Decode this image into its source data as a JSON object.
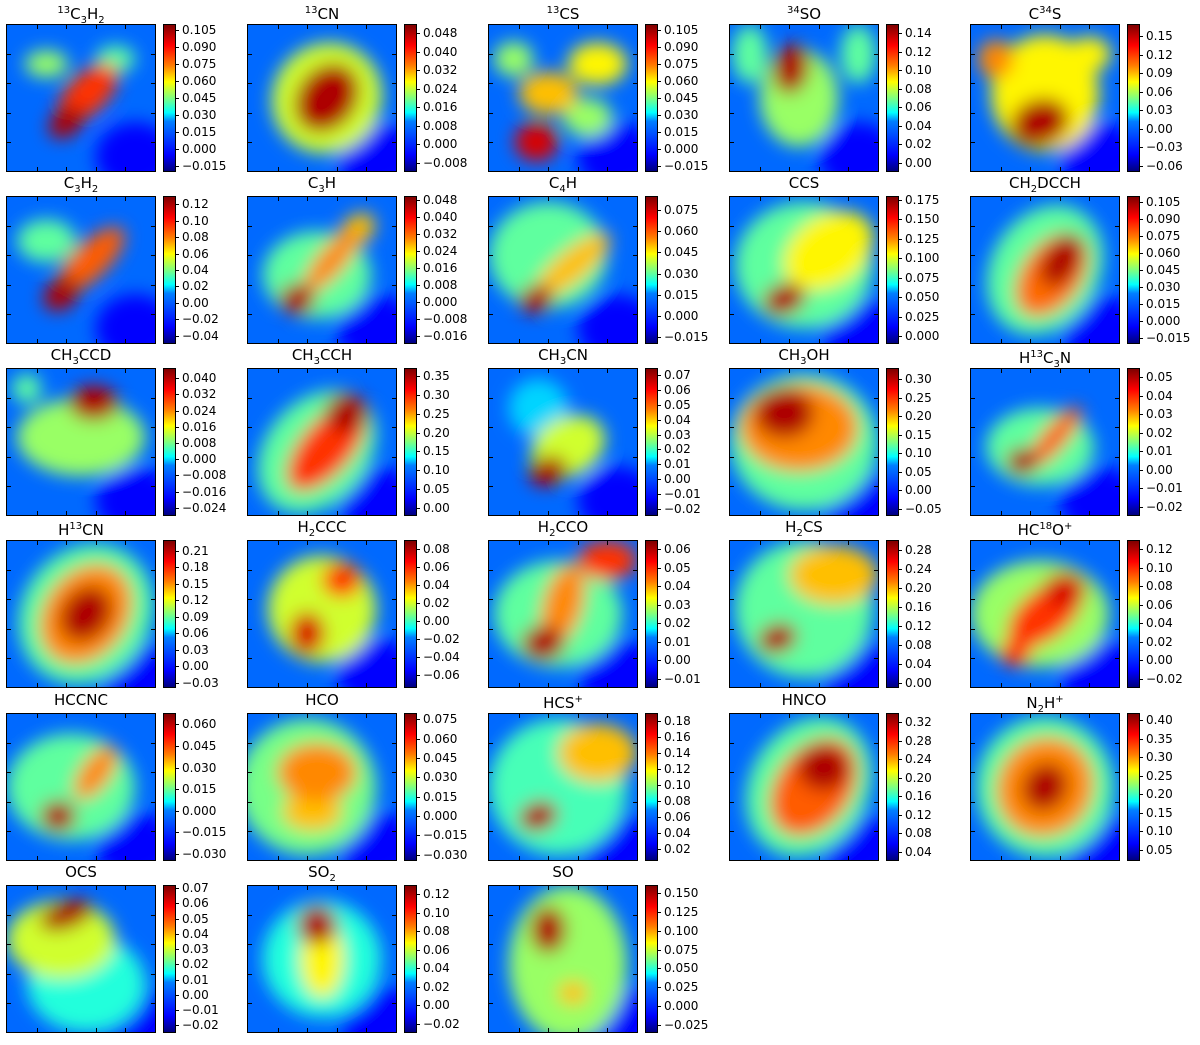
{
  "figure": {
    "panels": [
      {
        "title": "13C3H2",
        "ticks": [
          "0.105",
          "0.090",
          "0.075",
          "0.060",
          "0.045",
          "0.030",
          "0.015",
          "0.000",
          "−0.015"
        ]
      },
      {
        "title": "13CN",
        "ticks": [
          "0.048",
          "0.040",
          "0.032",
          "0.024",
          "0.016",
          "0.008",
          "0.000",
          "−0.008"
        ]
      },
      {
        "title": "13CS",
        "ticks": [
          "0.105",
          "0.090",
          "0.075",
          "0.060",
          "0.045",
          "0.030",
          "0.015",
          "0.000",
          "−0.015"
        ]
      },
      {
        "title": "34SO",
        "ticks": [
          "0.14",
          "0.12",
          "0.10",
          "0.08",
          "0.06",
          "0.04",
          "0.02",
          "0.00"
        ]
      },
      {
        "title": "C34S",
        "ticks": [
          "0.15",
          "0.12",
          "0.09",
          "0.06",
          "0.03",
          "0.00",
          "−0.03",
          "−0.06"
        ]
      },
      {
        "title": "C3H2",
        "ticks": [
          "0.12",
          "0.10",
          "0.08",
          "0.06",
          "0.04",
          "0.02",
          "0.00",
          "−0.02",
          "−0.04"
        ]
      },
      {
        "title": "C3H",
        "ticks": [
          "0.048",
          "0.040",
          "0.032",
          "0.024",
          "0.016",
          "0.008",
          "0.000",
          "−0.008",
          "−0.016"
        ]
      },
      {
        "title": "C4H",
        "ticks": [
          "0.075",
          "0.060",
          "0.045",
          "0.030",
          "0.015",
          "0.000",
          "−0.015"
        ]
      },
      {
        "title": "CCS",
        "ticks": [
          "0.175",
          "0.150",
          "0.125",
          "0.100",
          "0.075",
          "0.050",
          "0.025",
          "0.000"
        ]
      },
      {
        "title": "CH2DCCH",
        "ticks": [
          "0.105",
          "0.090",
          "0.075",
          "0.060",
          "0.045",
          "0.030",
          "0.015",
          "0.000",
          "−0.015"
        ]
      },
      {
        "title": "CH3CCD",
        "ticks": [
          "0.040",
          "0.032",
          "0.024",
          "0.016",
          "0.008",
          "0.000",
          "−0.008",
          "−0.016",
          "−0.024"
        ]
      },
      {
        "title": "CH3CCH",
        "ticks": [
          "0.35",
          "0.30",
          "0.25",
          "0.20",
          "0.15",
          "0.10",
          "0.05",
          "0.00"
        ]
      },
      {
        "title": "CH3CN",
        "ticks": [
          "0.07",
          "0.06",
          "0.05",
          "0.04",
          "0.03",
          "0.02",
          "0.01",
          "0.00",
          "−0.01",
          "−0.02"
        ]
      },
      {
        "title": "CH3OH",
        "ticks": [
          "0.30",
          "0.25",
          "0.20",
          "0.15",
          "0.10",
          "0.05",
          "0.00",
          "−0.05"
        ]
      },
      {
        "title": "H13C3N",
        "ticks": [
          "0.05",
          "0.04",
          "0.03",
          "0.02",
          "0.01",
          "0.00",
          "−0.01",
          "−0.02"
        ]
      },
      {
        "title": "H13CN",
        "ticks": [
          "0.21",
          "0.18",
          "0.15",
          "0.12",
          "0.09",
          "0.06",
          "0.03",
          "0.00",
          "−0.03"
        ]
      },
      {
        "title": "H2CCC",
        "ticks": [
          "0.08",
          "0.06",
          "0.04",
          "0.02",
          "0.00",
          "−0.02",
          "−0.04",
          "−0.06"
        ]
      },
      {
        "title": "H2CCO",
        "ticks": [
          "0.06",
          "0.05",
          "0.04",
          "0.03",
          "0.02",
          "0.01",
          "0.00",
          "−0.01"
        ]
      },
      {
        "title": "H2CS",
        "ticks": [
          "0.28",
          "0.24",
          "0.20",
          "0.16",
          "0.12",
          "0.08",
          "0.04",
          "0.00"
        ]
      },
      {
        "title": "HC18O+",
        "ticks": [
          "0.12",
          "0.10",
          "0.08",
          "0.06",
          "0.04",
          "0.02",
          "0.00",
          "−0.02"
        ]
      },
      {
        "title": "HCCNC",
        "ticks": [
          "0.060",
          "0.045",
          "0.030",
          "0.015",
          "0.000",
          "−0.015",
          "−0.030"
        ]
      },
      {
        "title": "HCO",
        "ticks": [
          "0.075",
          "0.060",
          "0.045",
          "0.030",
          "0.015",
          "0.000",
          "−0.015",
          "−0.030"
        ]
      },
      {
        "title": "HCS+",
        "ticks": [
          "0.18",
          "0.16",
          "0.14",
          "0.12",
          "0.10",
          "0.08",
          "0.06",
          "0.04",
          "0.02"
        ]
      },
      {
        "title": "HNCO",
        "ticks": [
          "0.32",
          "0.28",
          "0.24",
          "0.20",
          "0.16",
          "0.12",
          "0.08",
          "0.04"
        ]
      },
      {
        "title": "N2H+",
        "ticks": [
          "0.40",
          "0.35",
          "0.30",
          "0.25",
          "0.20",
          "0.15",
          "0.10",
          "0.05"
        ]
      },
      {
        "title": "OCS",
        "ticks": [
          "0.07",
          "0.06",
          "0.05",
          "0.04",
          "0.03",
          "0.02",
          "0.01",
          "0.00",
          "−0.01",
          "−0.02"
        ]
      },
      {
        "title": "SO2",
        "ticks": [
          "0.12",
          "0.10",
          "0.08",
          "0.06",
          "0.04",
          "0.02",
          "0.00",
          "−0.02"
        ]
      },
      {
        "title": "SO",
        "ticks": [
          "0.150",
          "0.125",
          "0.100",
          "0.075",
          "0.050",
          "0.025",
          "0.000",
          "−0.025"
        ]
      }
    ]
  },
  "chart_data": {
    "type": "heatmap",
    "colormap": "jet",
    "layout": "grid of 28 intensity maps, each with its own colorbar",
    "maps": [
      {
        "title": "13C3H2",
        "colorbar_range": [
          -0.02,
          0.11
        ],
        "morphology": "diagonal elongated emission, peak lower-left"
      },
      {
        "title": "13CN",
        "colorbar_range": [
          -0.012,
          0.052
        ],
        "morphology": "central elongated peak"
      },
      {
        "title": "13CS",
        "colorbar_range": [
          -0.02,
          0.11
        ],
        "morphology": "clumpy, peaks lower-center"
      },
      {
        "title": "34SO",
        "colorbar_range": [
          -0.01,
          0.15
        ],
        "morphology": "compact peak upper-center"
      },
      {
        "title": "C34S",
        "colorbar_range": [
          -0.07,
          0.17
        ],
        "morphology": "extended, peak lower-center"
      },
      {
        "title": "C3H2",
        "colorbar_range": [
          -0.05,
          0.13
        ],
        "morphology": "diagonal ridge, peak lower-left"
      },
      {
        "title": "C3H",
        "colorbar_range": [
          -0.02,
          0.05
        ],
        "morphology": "diagonal ridge, peak lower-left"
      },
      {
        "title": "C4H",
        "colorbar_range": [
          -0.02,
          0.085
        ],
        "morphology": "diagonal ridge, peak lower-left"
      },
      {
        "title": "CCS",
        "colorbar_range": [
          -0.01,
          0.18
        ],
        "morphology": "peak lower-left, extended to upper-right"
      },
      {
        "title": "CH2DCCH",
        "colorbar_range": [
          -0.02,
          0.11
        ],
        "morphology": "diagonal elongated, peak upper-center"
      },
      {
        "title": "CH3CCD",
        "colorbar_range": [
          -0.028,
          0.045
        ],
        "morphology": "compact peak upper-center"
      },
      {
        "title": "CH3CCH",
        "colorbar_range": [
          -0.02,
          0.37
        ],
        "morphology": "diagonal elongated, peak upper-right"
      },
      {
        "title": "CH3CN",
        "colorbar_range": [
          -0.025,
          0.075
        ],
        "morphology": "compact peak lower-center"
      },
      {
        "title": "CH3OH",
        "colorbar_range": [
          -0.07,
          0.33
        ],
        "morphology": "broad peak upper-left"
      },
      {
        "title": "H13C3N",
        "colorbar_range": [
          -0.025,
          0.055
        ],
        "morphology": "diagonal ridge, peak lower-left"
      },
      {
        "title": "H13CN",
        "colorbar_range": [
          -0.04,
          0.23
        ],
        "morphology": "central elongated peak"
      },
      {
        "title": "H2CCC",
        "colorbar_range": [
          -0.075,
          0.09
        ],
        "morphology": "clumpy, peak lower-center"
      },
      {
        "title": "H2CCO",
        "colorbar_range": [
          -0.015,
          0.065
        ],
        "morphology": "peak lower-left with extension to upper-right"
      },
      {
        "title": "H2CS",
        "colorbar_range": [
          -0.01,
          0.3
        ],
        "morphology": "peak lower-left, extended to upper-right"
      },
      {
        "title": "HC18O+",
        "colorbar_range": [
          -0.03,
          0.13
        ],
        "morphology": "clumpy diagonal emission"
      },
      {
        "title": "HCCNC",
        "colorbar_range": [
          -0.035,
          0.068
        ],
        "morphology": "peak lower-left, diagonal ridge"
      },
      {
        "title": "HCO",
        "colorbar_range": [
          -0.035,
          0.08
        ],
        "morphology": "diffuse clumpy emission"
      },
      {
        "title": "HCS+",
        "colorbar_range": [
          0.005,
          0.19
        ],
        "morphology": "peak lower-left, diagonal ridge"
      },
      {
        "title": "HNCO",
        "colorbar_range": [
          0.02,
          0.34
        ],
        "morphology": "elongated peak upper-center"
      },
      {
        "title": "N2H+",
        "colorbar_range": [
          0.02,
          0.42
        ],
        "morphology": "central elongated peak"
      },
      {
        "title": "OCS",
        "colorbar_range": [
          -0.025,
          0.072
        ],
        "morphology": "clumpy, peak upper-left"
      },
      {
        "title": "SO2",
        "colorbar_range": [
          -0.03,
          0.13
        ],
        "morphology": "peak upper-center"
      },
      {
        "title": "SO",
        "colorbar_range": [
          -0.035,
          0.16
        ],
        "morphology": "compact peak upper-center"
      }
    ]
  }
}
